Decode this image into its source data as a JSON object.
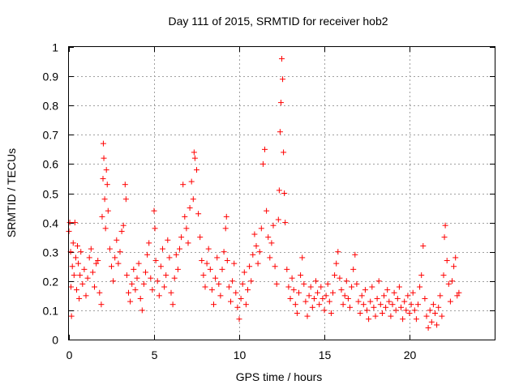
{
  "chart_data": {
    "type": "scatter",
    "title": "Day 111 of 2015, SRMTID for receiver hob2",
    "xlabel": "GPS time / hours",
    "ylabel": "SRMTID / TECUs",
    "xlim": [
      0,
      25
    ],
    "ylim": [
      0,
      1
    ],
    "xticks": [
      0,
      5,
      10,
      15,
      20
    ],
    "yticks": [
      0,
      0.1,
      0.2,
      0.3,
      0.4,
      0.5,
      0.6,
      0.7,
      0.8,
      0.9,
      1
    ],
    "xtick_labels": [
      "0",
      "5",
      "10",
      "15",
      "20"
    ],
    "ytick_labels": [
      "0",
      "0.1",
      "0.2",
      "0.3",
      "0.4",
      "0.5",
      "0.6",
      "0.7",
      "0.8",
      "0.9",
      "1"
    ],
    "grid": true,
    "marker": "+",
    "color": "#ff0000",
    "series": [
      {
        "name": "SRMTID",
        "points": [
          [
            0.0,
            0.37
          ],
          [
            0.05,
            0.4
          ],
          [
            0.1,
            0.3
          ],
          [
            0.12,
            0.18
          ],
          [
            0.15,
            0.08
          ],
          [
            0.2,
            0.25
          ],
          [
            0.25,
            0.33
          ],
          [
            0.3,
            0.22
          ],
          [
            0.35,
            0.4
          ],
          [
            0.4,
            0.28
          ],
          [
            0.45,
            0.17
          ],
          [
            0.5,
            0.32
          ],
          [
            0.55,
            0.26
          ],
          [
            0.6,
            0.14
          ],
          [
            0.65,
            0.22
          ],
          [
            0.7,
            0.3
          ],
          [
            0.8,
            0.19
          ],
          [
            0.9,
            0.24
          ],
          [
            1.0,
            0.15
          ],
          [
            1.1,
            0.21
          ],
          [
            1.2,
            0.28
          ],
          [
            1.3,
            0.31
          ],
          [
            1.4,
            0.23
          ],
          [
            1.5,
            0.18
          ],
          [
            1.6,
            0.26
          ],
          [
            1.7,
            0.27
          ],
          [
            1.8,
            0.16
          ],
          [
            1.9,
            0.12
          ],
          [
            1.95,
            0.42
          ],
          [
            2.0,
            0.55
          ],
          [
            2.02,
            0.67
          ],
          [
            2.05,
            0.62
          ],
          [
            2.1,
            0.48
          ],
          [
            2.15,
            0.38
          ],
          [
            2.2,
            0.58
          ],
          [
            2.25,
            0.53
          ],
          [
            2.3,
            0.44
          ],
          [
            2.4,
            0.31
          ],
          [
            2.5,
            0.25
          ],
          [
            2.6,
            0.2
          ],
          [
            2.7,
            0.28
          ],
          [
            2.8,
            0.34
          ],
          [
            2.9,
            0.26
          ],
          [
            3.0,
            0.3
          ],
          [
            3.1,
            0.37
          ],
          [
            3.2,
            0.39
          ],
          [
            3.3,
            0.53
          ],
          [
            3.35,
            0.48
          ],
          [
            3.4,
            0.22
          ],
          [
            3.5,
            0.16
          ],
          [
            3.6,
            0.13
          ],
          [
            3.7,
            0.19
          ],
          [
            3.8,
            0.24
          ],
          [
            3.9,
            0.17
          ],
          [
            4.0,
            0.21
          ],
          [
            4.1,
            0.26
          ],
          [
            4.2,
            0.14
          ],
          [
            4.3,
            0.1
          ],
          [
            4.4,
            0.19
          ],
          [
            4.5,
            0.23
          ],
          [
            4.6,
            0.29
          ],
          [
            4.7,
            0.33
          ],
          [
            4.8,
            0.21
          ],
          [
            4.9,
            0.17
          ],
          [
            5.0,
            0.44
          ],
          [
            5.05,
            0.38
          ],
          [
            5.1,
            0.27
          ],
          [
            5.2,
            0.2
          ],
          [
            5.3,
            0.15
          ],
          [
            5.4,
            0.25
          ],
          [
            5.5,
            0.31
          ],
          [
            5.6,
            0.18
          ],
          [
            5.7,
            0.22
          ],
          [
            5.8,
            0.34
          ],
          [
            5.9,
            0.28
          ],
          [
            6.0,
            0.16
          ],
          [
            6.1,
            0.12
          ],
          [
            6.2,
            0.21
          ],
          [
            6.3,
            0.29
          ],
          [
            6.4,
            0.24
          ],
          [
            6.5,
            0.31
          ],
          [
            6.6,
            0.35
          ],
          [
            6.7,
            0.53
          ],
          [
            6.8,
            0.42
          ],
          [
            6.9,
            0.38
          ],
          [
            7.0,
            0.33
          ],
          [
            7.1,
            0.45
          ],
          [
            7.2,
            0.54
          ],
          [
            7.3,
            0.48
          ],
          [
            7.35,
            0.64
          ],
          [
            7.4,
            0.62
          ],
          [
            7.5,
            0.58
          ],
          [
            7.6,
            0.43
          ],
          [
            7.7,
            0.35
          ],
          [
            7.8,
            0.27
          ],
          [
            7.9,
            0.22
          ],
          [
            8.0,
            0.18
          ],
          [
            8.1,
            0.26
          ],
          [
            8.2,
            0.31
          ],
          [
            8.3,
            0.24
          ],
          [
            8.4,
            0.17
          ],
          [
            8.5,
            0.12
          ],
          [
            8.6,
            0.21
          ],
          [
            8.7,
            0.28
          ],
          [
            8.8,
            0.19
          ],
          [
            8.9,
            0.15
          ],
          [
            9.0,
            0.24
          ],
          [
            9.1,
            0.3
          ],
          [
            9.2,
            0.38
          ],
          [
            9.25,
            0.42
          ],
          [
            9.3,
            0.27
          ],
          [
            9.4,
            0.18
          ],
          [
            9.5,
            0.13
          ],
          [
            9.6,
            0.2
          ],
          [
            9.7,
            0.26
          ],
          [
            9.8,
            0.16
          ],
          [
            9.9,
            0.11
          ],
          [
            10.0,
            0.07
          ],
          [
            10.1,
            0.14
          ],
          [
            10.2,
            0.19
          ],
          [
            10.3,
            0.23
          ],
          [
            10.4,
            0.12
          ],
          [
            10.5,
            0.17
          ],
          [
            10.6,
            0.25
          ],
          [
            10.7,
            0.2
          ],
          [
            10.8,
            0.29
          ],
          [
            10.9,
            0.36
          ],
          [
            11.0,
            0.32
          ],
          [
            11.1,
            0.26
          ],
          [
            11.2,
            0.3
          ],
          [
            11.3,
            0.38
          ],
          [
            11.4,
            0.6
          ],
          [
            11.5,
            0.65
          ],
          [
            11.6,
            0.44
          ],
          [
            11.7,
            0.35
          ],
          [
            11.8,
            0.28
          ],
          [
            11.9,
            0.33
          ],
          [
            12.0,
            0.39
          ],
          [
            12.1,
            0.25
          ],
          [
            12.2,
            0.19
          ],
          [
            12.3,
            0.41
          ],
          [
            12.35,
            0.51
          ],
          [
            12.4,
            0.71
          ],
          [
            12.45,
            0.81
          ],
          [
            12.5,
            0.96
          ],
          [
            12.55,
            0.89
          ],
          [
            12.6,
            0.64
          ],
          [
            12.65,
            0.5
          ],
          [
            12.7,
            0.4
          ],
          [
            12.8,
            0.24
          ],
          [
            12.9,
            0.18
          ],
          [
            13.0,
            0.14
          ],
          [
            13.1,
            0.21
          ],
          [
            13.2,
            0.17
          ],
          [
            13.3,
            0.12
          ],
          [
            13.4,
            0.09
          ],
          [
            13.5,
            0.16
          ],
          [
            13.6,
            0.22
          ],
          [
            13.7,
            0.28
          ],
          [
            13.8,
            0.19
          ],
          [
            13.9,
            0.13
          ],
          [
            14.0,
            0.08
          ],
          [
            14.1,
            0.15
          ],
          [
            14.2,
            0.18
          ],
          [
            14.3,
            0.11
          ],
          [
            14.4,
            0.14
          ],
          [
            14.5,
            0.2
          ],
          [
            14.6,
            0.16
          ],
          [
            14.7,
            0.12
          ],
          [
            14.8,
            0.18
          ],
          [
            14.9,
            0.14
          ],
          [
            15.0,
            0.1
          ],
          [
            15.1,
            0.15
          ],
          [
            15.2,
            0.19
          ],
          [
            15.3,
            0.13
          ],
          [
            15.4,
            0.09
          ],
          [
            15.5,
            0.16
          ],
          [
            15.6,
            0.22
          ],
          [
            15.7,
            0.26
          ],
          [
            15.8,
            0.3
          ],
          [
            15.9,
            0.21
          ],
          [
            16.0,
            0.17
          ],
          [
            16.1,
            0.12
          ],
          [
            16.2,
            0.15
          ],
          [
            16.3,
            0.2
          ],
          [
            16.4,
            0.14
          ],
          [
            16.5,
            0.11
          ],
          [
            16.6,
            0.18
          ],
          [
            16.7,
            0.24
          ],
          [
            16.8,
            0.29
          ],
          [
            16.9,
            0.19
          ],
          [
            17.0,
            0.13
          ],
          [
            17.1,
            0.09
          ],
          [
            17.2,
            0.15
          ],
          [
            17.3,
            0.12
          ],
          [
            17.4,
            0.17
          ],
          [
            17.5,
            0.1
          ],
          [
            17.6,
            0.07
          ],
          [
            17.7,
            0.13
          ],
          [
            17.8,
            0.18
          ],
          [
            17.9,
            0.11
          ],
          [
            18.0,
            0.08
          ],
          [
            18.1,
            0.14
          ],
          [
            18.2,
            0.2
          ],
          [
            18.3,
            0.12
          ],
          [
            18.4,
            0.09
          ],
          [
            18.5,
            0.15
          ],
          [
            18.6,
            0.11
          ],
          [
            18.7,
            0.17
          ],
          [
            18.8,
            0.13
          ],
          [
            18.9,
            0.08
          ],
          [
            19.0,
            0.12
          ],
          [
            19.1,
            0.16
          ],
          [
            19.2,
            0.1
          ],
          [
            19.3,
            0.14
          ],
          [
            19.4,
            0.18
          ],
          [
            19.5,
            0.11
          ],
          [
            19.6,
            0.07
          ],
          [
            19.7,
            0.13
          ],
          [
            19.8,
            0.1
          ],
          [
            19.9,
            0.15
          ],
          [
            20.0,
            0.09
          ],
          [
            20.1,
            0.12
          ],
          [
            20.2,
            0.16
          ],
          [
            20.3,
            0.1
          ],
          [
            20.4,
            0.07
          ],
          [
            20.5,
            0.12
          ],
          [
            20.6,
            0.18
          ],
          [
            20.7,
            0.22
          ],
          [
            20.8,
            0.32
          ],
          [
            20.9,
            0.14
          ],
          [
            21.0,
            0.08
          ],
          [
            21.1,
            0.04
          ],
          [
            21.2,
            0.1
          ],
          [
            21.3,
            0.06
          ],
          [
            21.4,
            0.12
          ],
          [
            21.5,
            0.09
          ],
          [
            21.6,
            0.05
          ],
          [
            21.7,
            0.11
          ],
          [
            21.8,
            0.15
          ],
          [
            21.9,
            0.08
          ],
          [
            22.0,
            0.22
          ],
          [
            22.05,
            0.35
          ],
          [
            22.1,
            0.39
          ],
          [
            22.2,
            0.27
          ],
          [
            22.3,
            0.19
          ],
          [
            22.4,
            0.13
          ],
          [
            22.5,
            0.2
          ],
          [
            22.6,
            0.25
          ],
          [
            22.7,
            0.28
          ],
          [
            22.8,
            0.15
          ],
          [
            22.9,
            0.16
          ]
        ]
      }
    ]
  }
}
